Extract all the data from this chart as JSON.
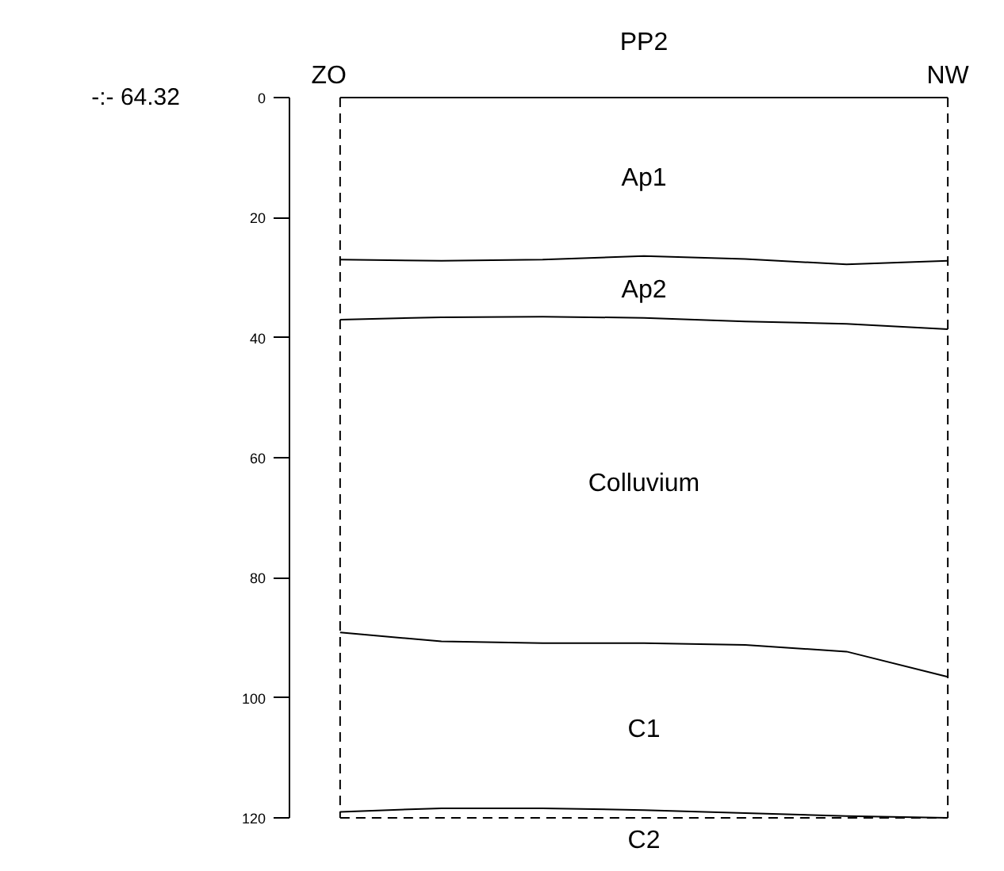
{
  "chart_data": {
    "type": "line",
    "title": "PP2",
    "categories": [
      null,
      null,
      null,
      null,
      null,
      null,
      null
    ],
    "ylim": [
      120,
      0
    ],
    "yticks": [
      0,
      20,
      40,
      60,
      80,
      100,
      120
    ],
    "tick_labels": "y",
    "grid": false,
    "series": [
      {
        "color": "#000000",
        "values": [
          0,
          0,
          0,
          0,
          0,
          0,
          0
        ]
      },
      {
        "color": "#000000",
        "values": [
          27.0,
          27.2,
          27.0,
          26.4,
          26.9,
          27.8,
          27.2
        ]
      },
      {
        "color": "#000000",
        "values": [
          37.0,
          36.6,
          36.5,
          36.7,
          37.3,
          37.7,
          38.6
        ]
      },
      {
        "color": "#000000",
        "values": [
          89.1,
          90.6,
          90.9,
          90.9,
          91.2,
          92.3,
          96.5
        ]
      },
      {
        "color": "#000000",
        "values": [
          119.0,
          118.4,
          118.4,
          118.7,
          119.2,
          119.7,
          120
        ]
      },
      {
        "color": "#000000",
        "line_style": "dashed",
        "values": [
          120,
          120,
          120,
          120,
          120,
          120,
          120
        ]
      }
    ],
    "annotations": [
      "-:- 64.32",
      "ZO",
      "NW",
      "Ap1",
      "Ap2",
      "Colluvium",
      "C1",
      "C2"
    ]
  }
}
